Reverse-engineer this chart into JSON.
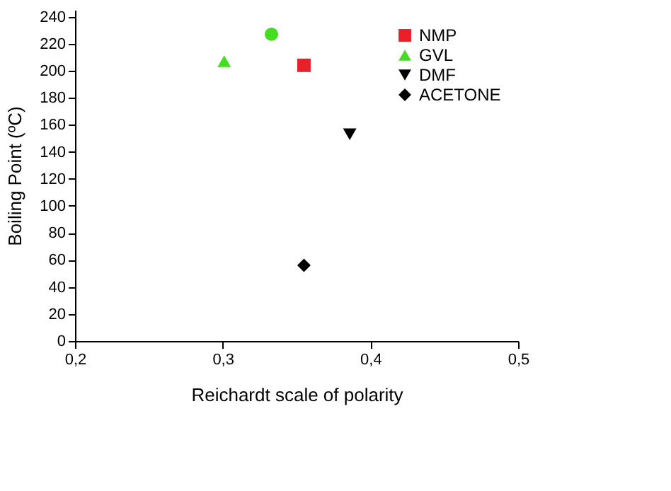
{
  "chart_data": {
    "type": "scatter",
    "xlabel": "Reichardt scale of polarity",
    "ylabel": "Boiling Point (ºC)",
    "xlim": [
      0.2,
      0.5
    ],
    "ylim": [
      0,
      245
    ],
    "xticks": [
      {
        "value": 0.2,
        "label": "0,2"
      },
      {
        "value": 0.3,
        "label": "0,3"
      },
      {
        "value": 0.4,
        "label": "0,4"
      },
      {
        "value": 0.5,
        "label": "0,5"
      }
    ],
    "yticks": [
      0,
      20,
      40,
      60,
      80,
      100,
      120,
      140,
      160,
      180,
      200,
      220,
      240
    ],
    "grid": false,
    "legend": "top right",
    "series": [
      {
        "name": "NMP",
        "color": "#e8202a",
        "marker": "square",
        "x": [
          0.355
        ],
        "values": [
          204
        ]
      },
      {
        "color": "#44dd22",
        "marker": "circle",
        "x": [
          0.333
        ],
        "values": [
          227
        ]
      },
      {
        "name": "GVL",
        "color": "#44dd22",
        "marker": "triangle",
        "x": [
          0.301
        ],
        "values": [
          207
        ]
      },
      {
        "name": "DMF",
        "color": "#000000",
        "marker": "triangle-down",
        "x": [
          0.386
        ],
        "values": [
          153
        ]
      },
      {
        "name": "ACETONE",
        "color": "#000000",
        "marker": "diamond",
        "x": [
          0.355
        ],
        "values": [
          56
        ]
      }
    ]
  }
}
